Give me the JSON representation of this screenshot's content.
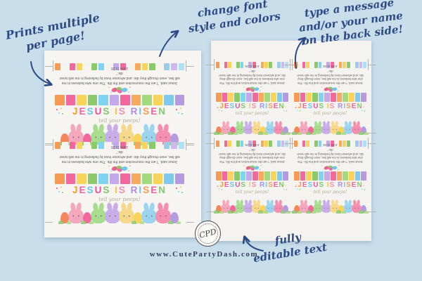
{
  "page": {
    "background_color": "#c9deeb",
    "website": "www.CutePartyDash.com"
  },
  "annotations": {
    "prints_multiple": {
      "line1": "Prints multiple",
      "line2": "per page!"
    },
    "change_font": {
      "line1": "change font",
      "line2": "style and colors"
    },
    "type_message": {
      "line1": "type a message",
      "line2": "and/or your name",
      "line3": "on the back side!"
    },
    "editable": {
      "line1": "fully",
      "line2": "editable text"
    }
  },
  "stamp": {
    "monogram": "CPD"
  },
  "accent_colors": {
    "handwriting": "#2e4a85",
    "tagline": "#b6a998",
    "scripture": "#5d5d5d"
  },
  "card": {
    "title_text": "JESUS IS RISEN",
    "title_letters": [
      {
        "ch": "J",
        "color": "#f59b2f"
      },
      {
        "ch": "E",
        "color": "#f0609c"
      },
      {
        "ch": "S",
        "color": "#5fc8f0"
      },
      {
        "ch": "U",
        "color": "#ee4f9b"
      },
      {
        "ch": "S",
        "color": "#7cc96c"
      },
      {
        "ch": " ",
        "color": ""
      },
      {
        "ch": "I",
        "color": "#f7c548"
      },
      {
        "ch": "S",
        "color": "#f48fb1"
      },
      {
        "ch": " ",
        "color": ""
      },
      {
        "ch": "R",
        "color": "#a98fe3"
      },
      {
        "ch": "I",
        "color": "#6fc2f2"
      },
      {
        "ch": "S",
        "color": "#f59b53"
      },
      {
        "ch": "E",
        "color": "#f0609c"
      },
      {
        "ch": "N",
        "color": "#84ca6e"
      }
    ],
    "tagline": "tell your peeps!",
    "scripture_quote": "Jesus said, “I am the resurrection and the life. The one who believes in me will live, even though they die; and whoever lives by believing in me will never die.”",
    "scripture_ref": "John 11:25",
    "strip_small": [
      "#f59b53",
      "#f6f3ef",
      "#f2679c",
      "#f9d45c",
      "#f6f3ef",
      "#8bc96a",
      "#7fd4ef",
      "#f6f3ef",
      "#c3a8ea",
      "#f2679c",
      "#f6f3ef",
      "#f8a95c",
      "#f9d45c",
      "#8bc96a",
      "#f6f3ef",
      "#9bcdea",
      "#cdb9ee",
      "#aee0f5"
    ],
    "strip_big": [
      "#f59b53",
      "#f2679c",
      "#f9d45c",
      "#8bc96a",
      "#7fd4ef",
      "#c3a8ea",
      "#f2679c",
      "#f8a95c",
      "#a5d97e",
      "#f9d45c",
      "#7fc8ee",
      "#b49be0"
    ],
    "jellybeans": [
      "#ef5f8e",
      "#8bc96a",
      "#6ec6ea",
      "#f2679c"
    ],
    "bunny_row": [
      {
        "type": "egg",
        "color": "#f2875a"
      },
      {
        "type": "bunny",
        "color": "#f4a7bd"
      },
      {
        "type": "egg",
        "color": "#f2679c"
      },
      {
        "type": "bunny",
        "color": "#a8dc8e"
      },
      {
        "type": "bunny",
        "color": "#c9ade9"
      },
      {
        "type": "bunny",
        "color": "#f6d88a"
      },
      {
        "type": "egg",
        "color": "#f9d45c"
      },
      {
        "type": "bunny",
        "color": "#9bd4ef"
      },
      {
        "type": "bunny",
        "color": "#f48fb1"
      },
      {
        "type": "egg",
        "color": "#b49be0"
      }
    ]
  }
}
